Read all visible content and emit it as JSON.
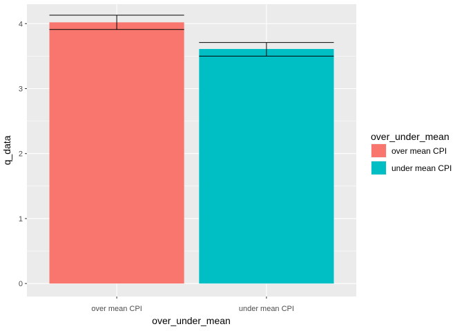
{
  "chart_data": {
    "type": "bar",
    "categories": [
      "over mean CPI",
      "under mean CPI"
    ],
    "values": [
      4.02,
      3.61
    ],
    "error_bars": [
      {
        "lower": 3.91,
        "upper": 4.13
      },
      {
        "lower": 3.5,
        "upper": 3.71
      }
    ],
    "xlabel": "over_under_mean",
    "ylabel": "q_data",
    "ylim": [
      -0.2,
      4.3
    ],
    "yticks": [
      0,
      1,
      2,
      3,
      4
    ],
    "grid": true,
    "legend": {
      "title": "over_under_mean",
      "position": "right",
      "entries": [
        {
          "label": "over mean CPI",
          "color": "#F8766D"
        },
        {
          "label": "under mean CPI",
          "color": "#00BFC4"
        }
      ]
    },
    "colors": [
      "#F8766D",
      "#00BFC4"
    ],
    "panel_background": "#EBEBEB"
  }
}
